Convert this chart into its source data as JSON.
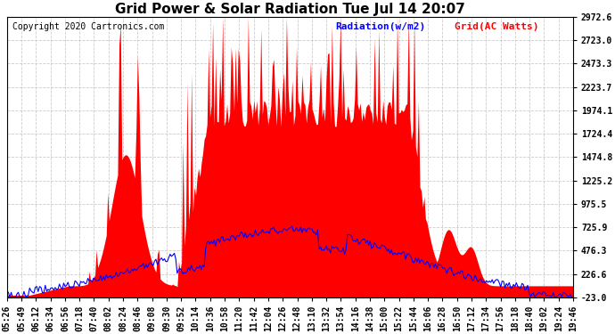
{
  "title": "Grid Power & Solar Radiation Tue Jul 14 20:07",
  "copyright": "Copyright 2020 Cartronics.com",
  "legend_blue": "Radiation(w/m2)",
  "legend_red": "Grid(AC Watts)",
  "yticks": [
    -23.0,
    226.6,
    476.3,
    725.9,
    975.5,
    1225.2,
    1474.8,
    1724.4,
    1974.1,
    2223.7,
    2473.3,
    2723.0,
    2972.6
  ],
  "ylim": [
    -23.0,
    2972.6
  ],
  "xtick_labels": [
    "05:26",
    "05:49",
    "06:12",
    "06:34",
    "06:56",
    "07:18",
    "07:40",
    "08:02",
    "08:24",
    "08:46",
    "09:08",
    "09:30",
    "09:52",
    "10:14",
    "10:36",
    "10:58",
    "11:20",
    "11:42",
    "12:04",
    "12:26",
    "12:48",
    "13:10",
    "13:32",
    "13:54",
    "14:16",
    "14:38",
    "15:00",
    "15:22",
    "15:44",
    "16:06",
    "16:28",
    "16:50",
    "17:12",
    "17:34",
    "17:56",
    "18:18",
    "18:40",
    "19:02",
    "19:24",
    "19:46"
  ],
  "bg_color": "#ffffff",
  "grid_color": "#c0c0c0",
  "red_color": "#ff0000",
  "blue_color": "#0000ff",
  "title_fontsize": 11,
  "tick_fontsize": 7,
  "legend_fontsize": 8,
  "copyright_fontsize": 7
}
